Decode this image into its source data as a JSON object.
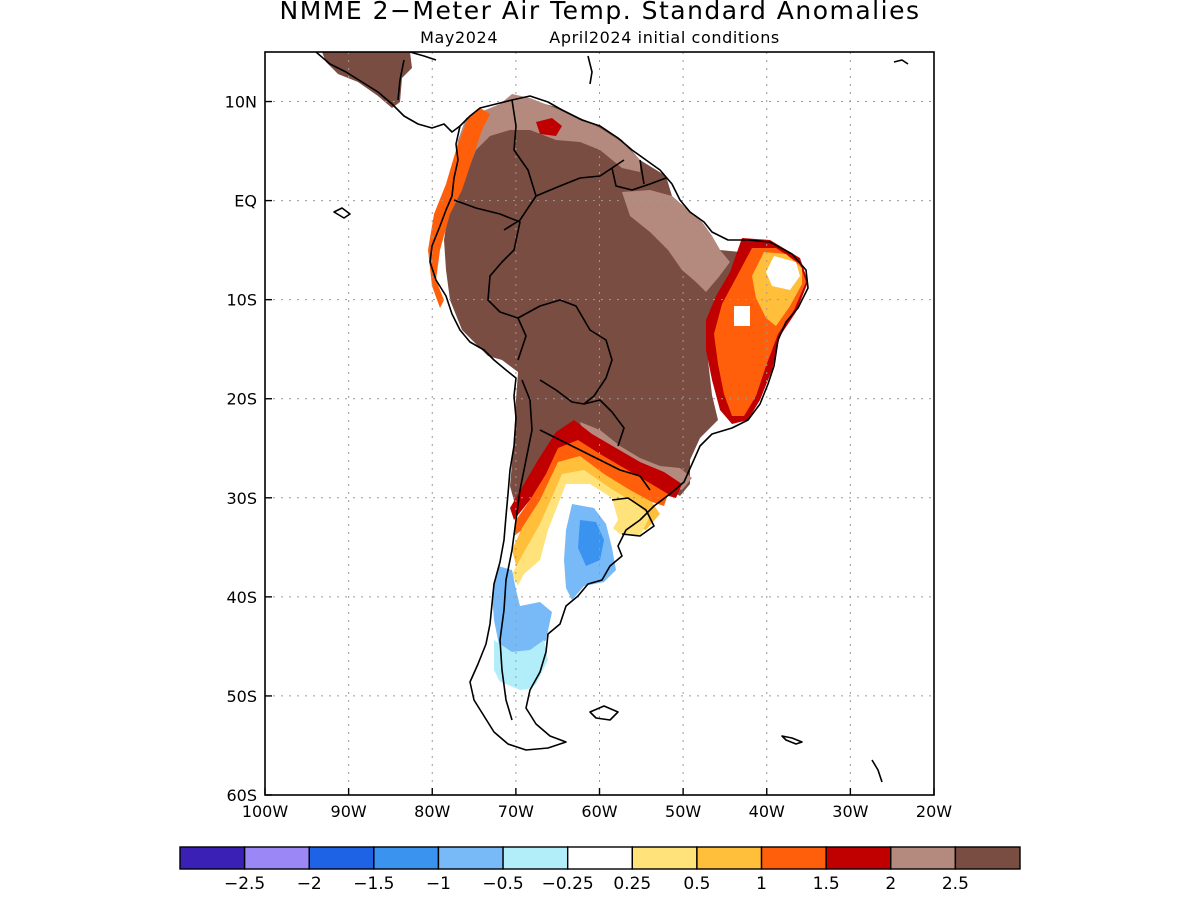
{
  "header": {
    "title": "NMME 2−Meter Air Temp. Standard Anomalies",
    "target_month": "May2024",
    "initial_conditions": "April2024 initial conditions"
  },
  "map": {
    "lon_range": [
      -100,
      -20
    ],
    "lat_range": [
      -60,
      15
    ],
    "lon_ticks": [
      {
        "value": -100,
        "label": "100W"
      },
      {
        "value": -90,
        "label": "90W"
      },
      {
        "value": -80,
        "label": "80W"
      },
      {
        "value": -70,
        "label": "70W"
      },
      {
        "value": -60,
        "label": "60W"
      },
      {
        "value": -50,
        "label": "50W"
      },
      {
        "value": -40,
        "label": "40W"
      },
      {
        "value": -30,
        "label": "30W"
      },
      {
        "value": -20,
        "label": "20W"
      }
    ],
    "lat_ticks": [
      {
        "value": 10,
        "label": "10N"
      },
      {
        "value": 0,
        "label": "EQ"
      },
      {
        "value": -10,
        "label": "10S"
      },
      {
        "value": -20,
        "label": "20S"
      },
      {
        "value": -30,
        "label": "30S"
      },
      {
        "value": -40,
        "label": "40S"
      },
      {
        "value": -50,
        "label": "50S"
      },
      {
        "value": -60,
        "label": "60S"
      }
    ],
    "gridlines": true
  },
  "colorbar": {
    "colors": [
      "#3a20b5",
      "#9b87f5",
      "#1e63e6",
      "#3b93f0",
      "#78b9f8",
      "#b2eefa",
      "#ffffff",
      "#ffe27a",
      "#ffbf3a",
      "#ff5f0a",
      "#c00000",
      "#b58a7e",
      "#7a4d42"
    ],
    "labels": [
      "−2.5",
      "−2",
      "−1.5",
      "−1",
      "−0.5",
      "−0.25",
      "0.25",
      "0.5",
      "1",
      "1.5",
      "2",
      "2.5"
    ]
  }
}
